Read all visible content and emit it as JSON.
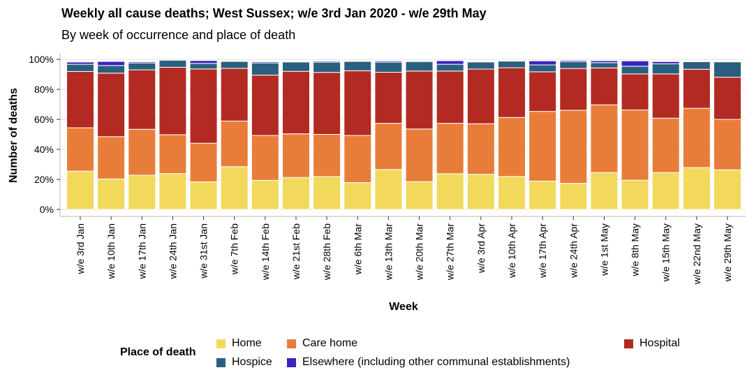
{
  "title": "Weekly all cause deaths; West Sussex; w/e 3rd Jan 2020 - w/e 29th May",
  "subtitle": "By week of occurrence and place of death",
  "legend": {
    "title": "Place of death",
    "items": [
      {
        "label": "Home",
        "color": "#f2d95c"
      },
      {
        "label": "Care home",
        "color": "#e87d3a"
      },
      {
        "label": "Hospital",
        "color": "#b32a22"
      },
      {
        "label": "Hospice",
        "color": "#2a5f7f"
      },
      {
        "label": "Elsewhere (including other communal establishments)",
        "color": "#3a24c2"
      }
    ]
  },
  "chart_data": {
    "type": "bar",
    "stacked": true,
    "title": "Weekly all cause deaths; West Sussex; w/e 3rd Jan 2020 - w/e 29th May",
    "subtitle": "By week of occurrence and place of death",
    "xlabel": "Week",
    "ylabel": "Number of deaths",
    "ylim": [
      0,
      100
    ],
    "yticks": [
      "0%",
      "20%",
      "40%",
      "60%",
      "80%",
      "100%"
    ],
    "ytick_values": [
      0,
      20,
      40,
      60,
      80,
      100
    ],
    "legend_position": "bottom",
    "categories": [
      "w/e 3rd Jan",
      "w/e 10th Jan",
      "w/e 17th Jan",
      "w/e 24th Jan",
      "w/e 31st Jan",
      "w/e 7th Feb",
      "w/e 14th Feb",
      "w/e 21st Feb",
      "w/e 28th Feb",
      "w/e 6th Mar",
      "w/e 13th Mar",
      "w/e 20th Mar",
      "w/e 27th Mar",
      "w/e 3rd Apr",
      "w/e 10th Apr",
      "w/e 17th Apr",
      "w/e 24th Apr",
      "w/e 1st May",
      "w/e 8th May",
      "w/e 15th May",
      "w/e 22nd May",
      "w/e 29th May"
    ],
    "series": [
      {
        "name": "Home",
        "color": "#f2d95c",
        "values": [
          25.5,
          20.3,
          22.8,
          23.9,
          18.4,
          28.5,
          19.4,
          21.3,
          21.9,
          17.9,
          26.6,
          18.5,
          23.8,
          23.4,
          22.0,
          18.9,
          17.4,
          24.6,
          19.5,
          24.6,
          27.9,
          26.4
        ]
      },
      {
        "name": "Care home",
        "color": "#e87d3a",
        "values": [
          28.9,
          28.2,
          30.6,
          25.9,
          25.7,
          30.4,
          29.9,
          29.1,
          28.1,
          31.4,
          30.8,
          35.1,
          33.6,
          33.7,
          39.3,
          46.4,
          48.7,
          45.1,
          46.8,
          36.2,
          39.5,
          33.6
        ]
      },
      {
        "name": "Hospital",
        "color": "#b32a22",
        "values": [
          37.5,
          42.3,
          39.6,
          44.9,
          49.5,
          35.1,
          40.2,
          41.6,
          41.3,
          43.1,
          34.0,
          38.6,
          34.8,
          36.4,
          33.1,
          26.4,
          27.8,
          24.6,
          24.0,
          29.5,
          26.0,
          28.1
        ]
      },
      {
        "name": "Hospice",
        "color": "#2a5f7f",
        "values": [
          4.8,
          5.1,
          4.6,
          4.7,
          3.7,
          4.6,
          8.1,
          6.2,
          6.8,
          6.2,
          6.7,
          6.3,
          4.5,
          4.7,
          4.4,
          4.6,
          4.6,
          3.5,
          5.1,
          6.7,
          5.0,
          10.2
        ]
      },
      {
        "name": "Elsewhere (including other communal establishments)",
        "color": "#3a24c2",
        "values": [
          1.5,
          2.7,
          0.8,
          0,
          1.9,
          0,
          0.8,
          0,
          0.7,
          0,
          0.8,
          0,
          2.4,
          0,
          0,
          2.7,
          0.8,
          1.3,
          3.6,
          1.5,
          0,
          0
        ]
      }
    ]
  }
}
